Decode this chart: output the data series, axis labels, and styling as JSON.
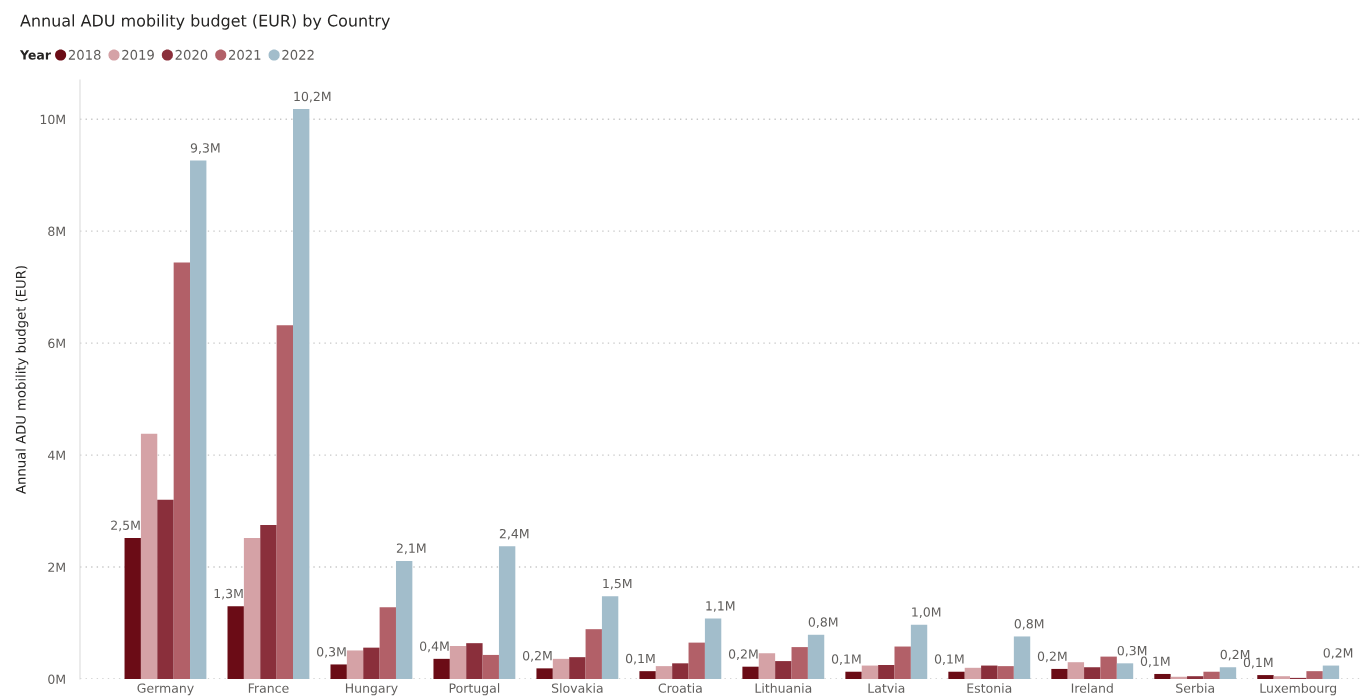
{
  "chart_data": {
    "type": "bar",
    "title": "Annual ADU mobility budget (EUR) by Country",
    "ylabel": "Annual ADU mobility budget (EUR)",
    "legend_title": "Year",
    "categories": [
      "Germany",
      "France",
      "Hungary",
      "Portugal",
      "Slovakia",
      "Croatia",
      "Lithuania",
      "Latvia",
      "Estonia",
      "Ireland",
      "Serbia",
      "Luxembourg"
    ],
    "series": [
      {
        "name": "2018",
        "color": "#6b0c16",
        "values": [
          2.52,
          1.3,
          0.26,
          0.36,
          0.19,
          0.14,
          0.22,
          0.13,
          0.13,
          0.18,
          0.09,
          0.07
        ],
        "value_labels": [
          "2,5M",
          "1,3M",
          "0,3M",
          "0,4M",
          "0,2M",
          "0,1M",
          "0,2M",
          "0,1M",
          "0,1M",
          "0,2M",
          "0,1M",
          "0,1M"
        ]
      },
      {
        "name": "2019",
        "color": "#d5a2a6",
        "values": [
          4.38,
          2.52,
          0.51,
          0.59,
          0.36,
          0.23,
          0.46,
          0.24,
          0.2,
          0.3,
          0.04,
          0.05
        ]
      },
      {
        "name": "2020",
        "color": "#8a2f3b",
        "values": [
          3.2,
          2.75,
          0.56,
          0.64,
          0.39,
          0.28,
          0.32,
          0.25,
          0.24,
          0.21,
          0.05,
          0.02
        ]
      },
      {
        "name": "2021",
        "color": "#b26068",
        "values": [
          7.44,
          6.32,
          1.28,
          0.43,
          0.89,
          0.65,
          0.57,
          0.58,
          0.23,
          0.4,
          0.13,
          0.14
        ]
      },
      {
        "name": "2022",
        "color": "#a2bdcb",
        "values": [
          9.26,
          10.18,
          2.11,
          2.37,
          1.48,
          1.08,
          0.79,
          0.97,
          0.76,
          0.28,
          0.21,
          0.24
        ],
        "value_labels": [
          "9,3M",
          "10,2M",
          "2,1M",
          "2,4M",
          "1,5M",
          "1,1M",
          "0,8M",
          "1,0M",
          "0,8M",
          "0,3M",
          "0,2M",
          "0,2M"
        ]
      }
    ],
    "ylim": [
      0,
      10.7
    ],
    "yticks": [
      {
        "value": 0,
        "label": "0M"
      },
      {
        "value": 2,
        "label": "2M"
      },
      {
        "value": 4,
        "label": "4M"
      },
      {
        "value": 6,
        "label": "6M"
      },
      {
        "value": 8,
        "label": "8M"
      },
      {
        "value": 10,
        "label": "10M"
      }
    ],
    "grid": "y",
    "legend": "top left"
  }
}
